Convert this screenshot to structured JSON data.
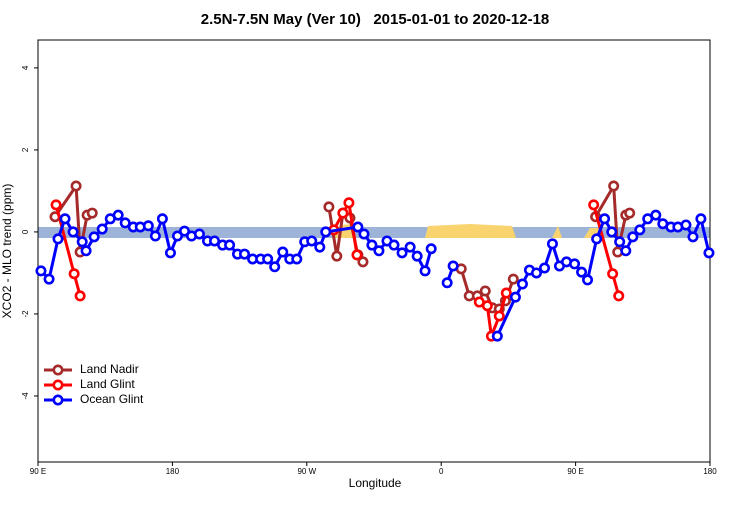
{
  "chart_data": {
    "type": "line",
    "title": "2.5N-7.5N May (Ver 10)   2015-01-01 to 2020-12-18",
    "x_label": "Longitude",
    "y_label": "XCO2 - MLO trend (ppm)",
    "xlim": [
      90,
      540
    ],
    "xticks": [
      {
        "value": 90,
        "label": "90 E"
      },
      {
        "value": 180,
        "label": "180"
      },
      {
        "value": 270,
        "label": "90 W"
      },
      {
        "value": 360,
        "label": "0"
      },
      {
        "value": 450,
        "label": "90 E"
      },
      {
        "value": 540,
        "label": "180"
      }
    ],
    "ylim": [
      -5.61,
      4.68
    ],
    "yticks": [
      -4,
      -2,
      0,
      2,
      4
    ],
    "legend": "bottom-left",
    "series": [
      {
        "name": "Land Nadir",
        "color": "#a52a2a",
        "x": [
          101.4,
          115.5,
          118.2,
          122.9,
          126.3,
          280.0,
          284.8,
          290.1,
          294.2,
          298.9,
          304.2,
          307.6,
          340.0,
          373.4,
          378.8,
          384.2,
          389.5,
          394.2,
          398.9,
          403.0,
          408.3,
          440.0,
          463.4,
          475.5,
          478.2,
          483.6,
          486.2
        ],
        "values": [
          0.37,
          1.12,
          -0.49,
          0.41,
          0.46,
          null,
          0.61,
          -0.59,
          0.46,
          0.34,
          -0.56,
          -0.73,
          null,
          -0.9,
          -1.56,
          -1.56,
          -1.44,
          -1.85,
          -1.88,
          -1.68,
          -1.15,
          null,
          0.37,
          1.12,
          -0.49,
          0.41,
          0.46
        ]
      },
      {
        "name": "Land Glint",
        "color": "#ff0000",
        "x": [
          102.1,
          114.2,
          118.2,
          200.0,
          288.1,
          294.2,
          298.2,
          303.6,
          340.0,
          385.5,
          390.9,
          393.6,
          398.9,
          403.6,
          440.0,
          462.1,
          474.8,
          478.9
        ],
        "values": [
          0.66,
          -1.02,
          -1.56,
          null,
          0.05,
          0.46,
          0.71,
          -0.56,
          null,
          -1.71,
          -1.8,
          -2.54,
          -2.05,
          -1.49,
          null,
          0.66,
          -1.02,
          -1.56
        ]
      },
      {
        "name": "Ocean Glint",
        "color": "#0000ff",
        "x": [
          92.0,
          97.4,
          103.4,
          108.1,
          113.5,
          119.6,
          122.2,
          127.6,
          133.0,
          138.4,
          143.7,
          148.4,
          153.8,
          158.5,
          163.9,
          168.6,
          173.3,
          178.7,
          183.4,
          188.1,
          192.8,
          198.1,
          203.5,
          208.2,
          213.6,
          218.3,
          223.6,
          228.3,
          233.7,
          239.1,
          243.8,
          248.5,
          253.9,
          258.6,
          263.3,
          268.6,
          273.3,
          278.7,
          282.7,
          304.2,
          308.3,
          313.6,
          318.3,
          323.7,
          328.4,
          333.8,
          339.2,
          343.9,
          349.2,
          353.3,
          358.0,
          364.0,
          368.0,
          380.0,
          397.6,
          409.7,
          414.4,
          419.1,
          423.8,
          429.2,
          434.5,
          439.2,
          443.9,
          449.3,
          454.0,
          458.0,
          464.1,
          469.4,
          474.2,
          479.5,
          483.6,
          488.3,
          493.0,
          498.3,
          503.7,
          508.4,
          513.8,
          518.5,
          523.9,
          528.6,
          533.9,
          539.3
        ],
        "values": [
          -0.95,
          -1.15,
          -0.17,
          0.32,
          0,
          -0.24,
          -0.46,
          -0.12,
          0.07,
          0.32,
          0.41,
          0.22,
          0.12,
          0.12,
          0.15,
          -0.1,
          0.32,
          -0.51,
          -0.1,
          0.02,
          -0.1,
          -0.05,
          -0.22,
          -0.22,
          -0.32,
          -0.32,
          -0.54,
          -0.54,
          -0.66,
          -0.66,
          -0.66,
          -0.85,
          -0.49,
          -0.66,
          -0.66,
          -0.24,
          -0.22,
          -0.37,
          0,
          0.12,
          -0.05,
          -0.32,
          -0.46,
          -0.22,
          -0.32,
          -0.51,
          -0.37,
          -0.59,
          -0.95,
          -0.41,
          null,
          -1.24,
          -0.83,
          null,
          -2.54,
          -1.59,
          -1.27,
          -0.93,
          -1.0,
          -0.88,
          -0.29,
          -0.83,
          -0.73,
          -0.78,
          -0.98,
          -1.17,
          -0.17,
          0.32,
          0,
          -0.24,
          -0.46,
          -0.12,
          0.05,
          0.32,
          0.41,
          0.2,
          0.12,
          0.12,
          0.17,
          -0.12,
          0.32,
          -0.51
        ]
      }
    ]
  }
}
